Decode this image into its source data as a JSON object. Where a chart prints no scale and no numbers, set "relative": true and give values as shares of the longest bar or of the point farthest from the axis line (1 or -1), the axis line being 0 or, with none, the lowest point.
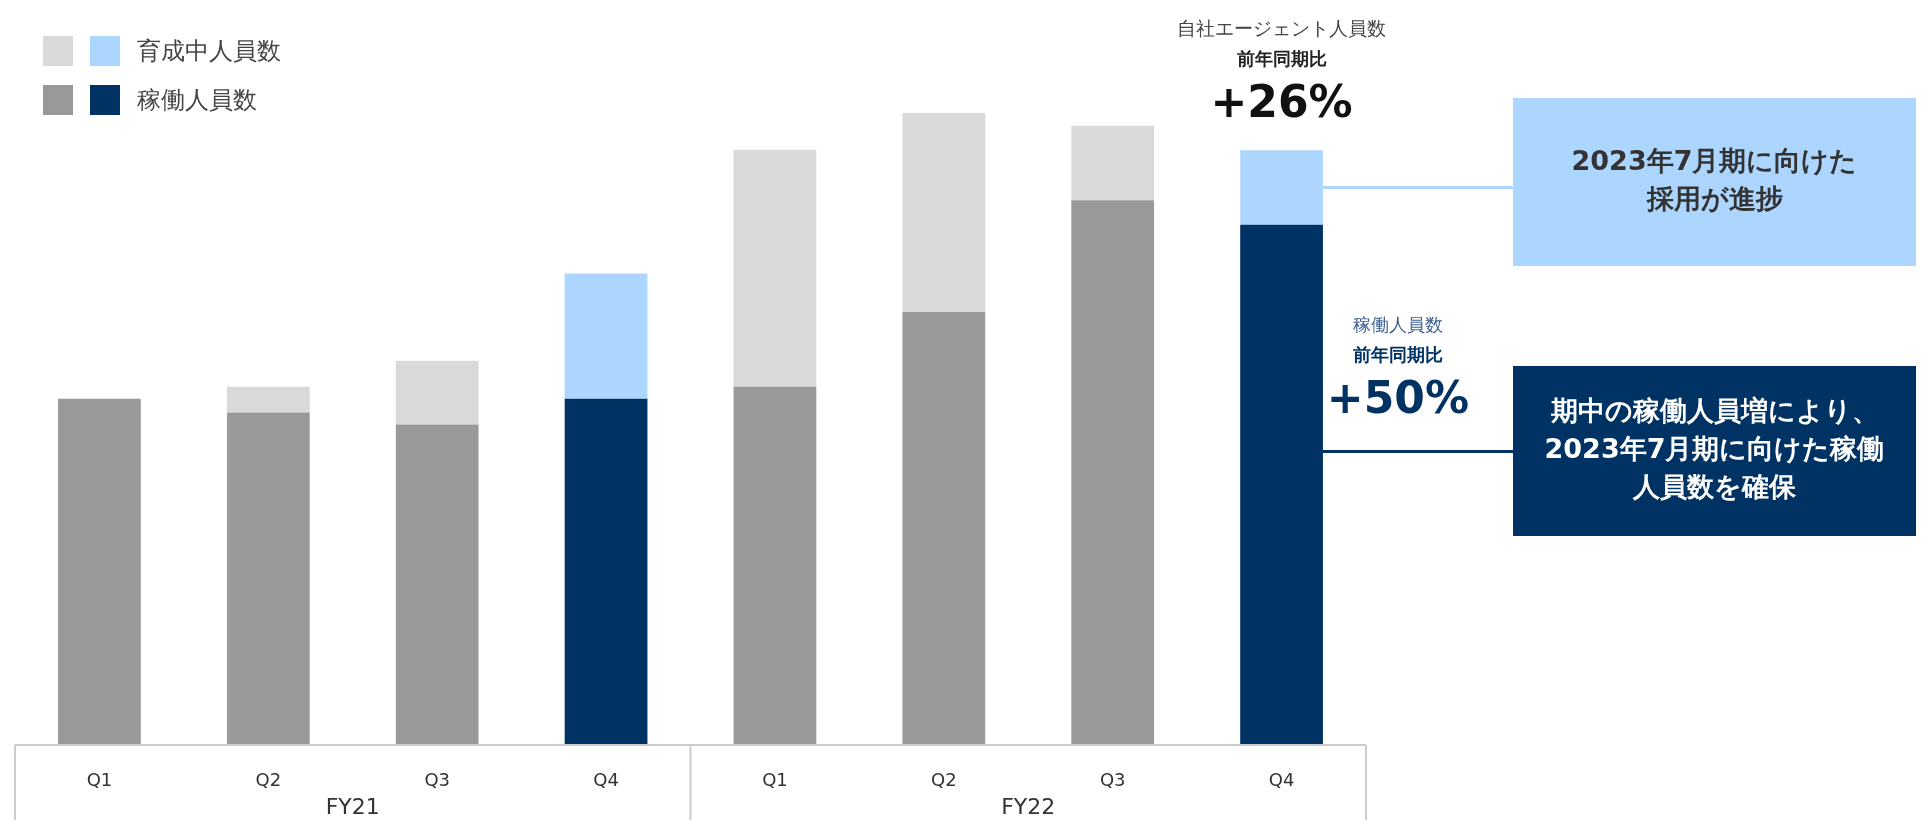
{
  "chart_data": {
    "type": "bar",
    "stacked": true,
    "relative": true,
    "legend": "top left",
    "categories": [
      "Q1",
      "Q2",
      "Q3",
      "Q4",
      "Q1",
      "Q2",
      "Q3",
      "Q4"
    ],
    "series": [
      {
        "name": "稼働人員数",
        "colors": [
          "#999999",
          "#999999",
          "#999999",
          "#003263",
          "#999999",
          "#999999",
          "#999999",
          "#003263"
        ],
        "values": [
          0.548,
          0.526,
          0.507,
          0.548,
          0.567,
          0.685,
          0.862,
          0.823
        ]
      },
      {
        "name": "育成中人員数",
        "colors": [
          "#d9d9d9",
          "#d9d9d9",
          "#d9d9d9",
          "#add6fe",
          "#d9d9d9",
          "#d9d9d9",
          "#d9d9d9",
          "#add6fe"
        ],
        "values": [
          0,
          0.041,
          0.101,
          0.198,
          0.375,
          0.315,
          0.118,
          0.118
        ]
      }
    ],
    "annotations": [
      "FY21",
      "FY22",
      "自社エージェント人員数",
      "前年同期比",
      "+26%",
      "稼働人員数",
      "前年同期比",
      "+50%",
      "2023年7月期に向けた採用が進捗",
      "期中の稼働人員増により、2023年7月期に向けた稼働人員数を確保"
    ]
  }
}
